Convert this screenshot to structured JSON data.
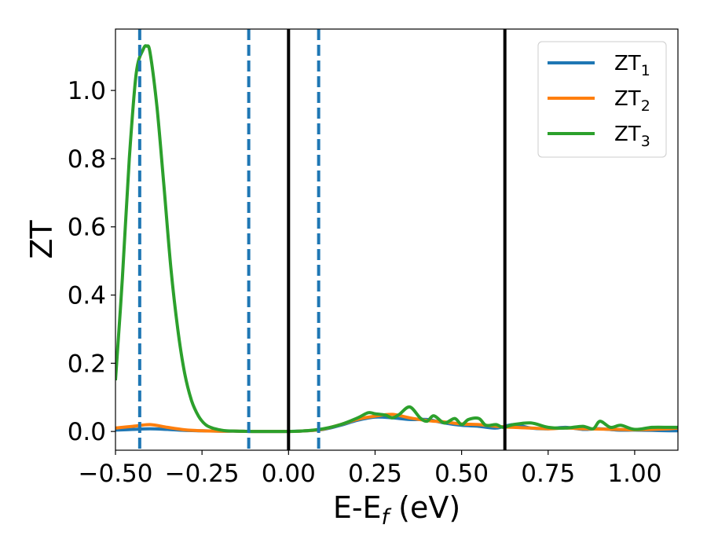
{
  "chart_data": {
    "type": "line",
    "xlabel": "E-E",
    "xlabel_sub": "f",
    "xlabel_unit": " (eV)",
    "ylabel": "ZT",
    "xlim": [
      -0.5,
      1.125
    ],
    "ylim": [
      -0.055,
      1.18
    ],
    "xticks": [
      -0.5,
      -0.25,
      0.0,
      0.25,
      0.5,
      0.75,
      1.0
    ],
    "xtick_labels": [
      "−0.50",
      "−0.25",
      "0.00",
      "0.25",
      "0.50",
      "0.75",
      "1.00"
    ],
    "yticks": [
      0.0,
      0.2,
      0.4,
      0.6,
      0.8,
      1.0
    ],
    "ytick_labels": [
      "0.0",
      "0.2",
      "0.4",
      "0.6",
      "0.8",
      "1.0"
    ],
    "grid": false,
    "legend_position": "top-right",
    "series": [
      {
        "name": "ZT",
        "name_sub": "1",
        "color": "#1f77b4",
        "x": [
          -0.5,
          -0.45,
          -0.4,
          -0.35,
          -0.3,
          -0.25,
          -0.2,
          -0.15,
          -0.1,
          -0.05,
          0.0,
          0.05,
          0.1,
          0.15,
          0.2,
          0.25,
          0.3,
          0.35,
          0.4,
          0.45,
          0.5,
          0.55,
          0.6,
          0.65,
          0.7,
          0.75,
          0.8,
          0.85,
          0.9,
          0.95,
          1.0,
          1.05,
          1.1,
          1.125
        ],
        "y": [
          0.004,
          0.006,
          0.008,
          0.006,
          0.003,
          0.002,
          0.001,
          0.001,
          0.0,
          0.0,
          0.0,
          0.002,
          0.006,
          0.018,
          0.033,
          0.042,
          0.04,
          0.035,
          0.035,
          0.025,
          0.018,
          0.015,
          0.01,
          0.02,
          0.01,
          0.008,
          0.012,
          0.006,
          0.008,
          0.004,
          0.004,
          0.003,
          0.002,
          0.002
        ]
      },
      {
        "name": "ZT",
        "name_sub": "2",
        "color": "#ff7f0e",
        "x": [
          -0.5,
          -0.45,
          -0.4,
          -0.35,
          -0.3,
          -0.25,
          -0.2,
          -0.15,
          -0.1,
          -0.05,
          0.0,
          0.05,
          0.1,
          0.15,
          0.2,
          0.25,
          0.3,
          0.35,
          0.4,
          0.45,
          0.5,
          0.55,
          0.6,
          0.65,
          0.7,
          0.75,
          0.8,
          0.85,
          0.9,
          0.95,
          1.0,
          1.05,
          1.1,
          1.125
        ],
        "y": [
          0.01,
          0.015,
          0.02,
          0.012,
          0.005,
          0.002,
          0.001,
          0.001,
          0.0,
          0.0,
          0.0,
          0.002,
          0.007,
          0.02,
          0.036,
          0.045,
          0.05,
          0.04,
          0.032,
          0.028,
          0.022,
          0.02,
          0.015,
          0.012,
          0.01,
          0.008,
          0.01,
          0.008,
          0.007,
          0.006,
          0.005,
          0.006,
          0.008,
          0.01
        ]
      },
      {
        "name": "ZT",
        "name_sub": "3",
        "color": "#2ca02c",
        "x": [
          -0.5,
          -0.48,
          -0.46,
          -0.44,
          -0.42,
          -0.41,
          -0.4,
          -0.38,
          -0.36,
          -0.34,
          -0.32,
          -0.3,
          -0.28,
          -0.26,
          -0.24,
          -0.22,
          -0.2,
          -0.18,
          -0.15,
          -0.1,
          -0.05,
          0.0,
          0.05,
          0.1,
          0.15,
          0.2,
          0.23,
          0.25,
          0.28,
          0.3,
          0.32,
          0.35,
          0.38,
          0.4,
          0.42,
          0.45,
          0.48,
          0.5,
          0.52,
          0.55,
          0.57,
          0.6,
          0.62,
          0.65,
          0.7,
          0.75,
          0.8,
          0.85,
          0.88,
          0.9,
          0.93,
          0.96,
          1.0,
          1.05,
          1.1,
          1.125
        ],
        "y": [
          0.15,
          0.45,
          0.8,
          1.05,
          1.12,
          1.13,
          1.11,
          0.95,
          0.72,
          0.48,
          0.3,
          0.17,
          0.09,
          0.045,
          0.02,
          0.01,
          0.005,
          0.002,
          0.001,
          0.0,
          0.0,
          0.0,
          0.002,
          0.008,
          0.02,
          0.04,
          0.055,
          0.052,
          0.048,
          0.04,
          0.05,
          0.072,
          0.04,
          0.03,
          0.046,
          0.025,
          0.038,
          0.02,
          0.035,
          0.038,
          0.018,
          0.02,
          0.012,
          0.02,
          0.025,
          0.012,
          0.01,
          0.015,
          0.008,
          0.03,
          0.012,
          0.018,
          0.006,
          0.012,
          0.012,
          0.012
        ]
      }
    ],
    "vlines": [
      {
        "x": -0.43,
        "style": "dashed",
        "color": "#1f77b4"
      },
      {
        "x": -0.115,
        "style": "dashed",
        "color": "#1f77b4"
      },
      {
        "x": 0.0,
        "style": "solid",
        "color": "#000000"
      },
      {
        "x": 0.087,
        "style": "dashed",
        "color": "#1f77b4"
      },
      {
        "x": 0.625,
        "style": "solid",
        "color": "#000000"
      }
    ]
  }
}
